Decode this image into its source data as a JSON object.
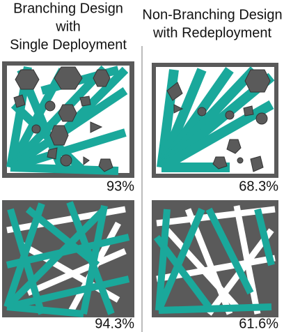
{
  "columns": [
    {
      "title_lines": [
        "Branching Design",
        "with",
        "Single Deployment"
      ],
      "panels": [
        {
          "label": "93%"
        },
        {
          "label": "94.3%"
        }
      ]
    },
    {
      "title_lines": [
        "Non-Branching Design",
        "with Redeployment"
      ],
      "panels": [
        {
          "label": "68.3%"
        },
        {
          "label": "61.6%"
        }
      ]
    }
  ]
}
